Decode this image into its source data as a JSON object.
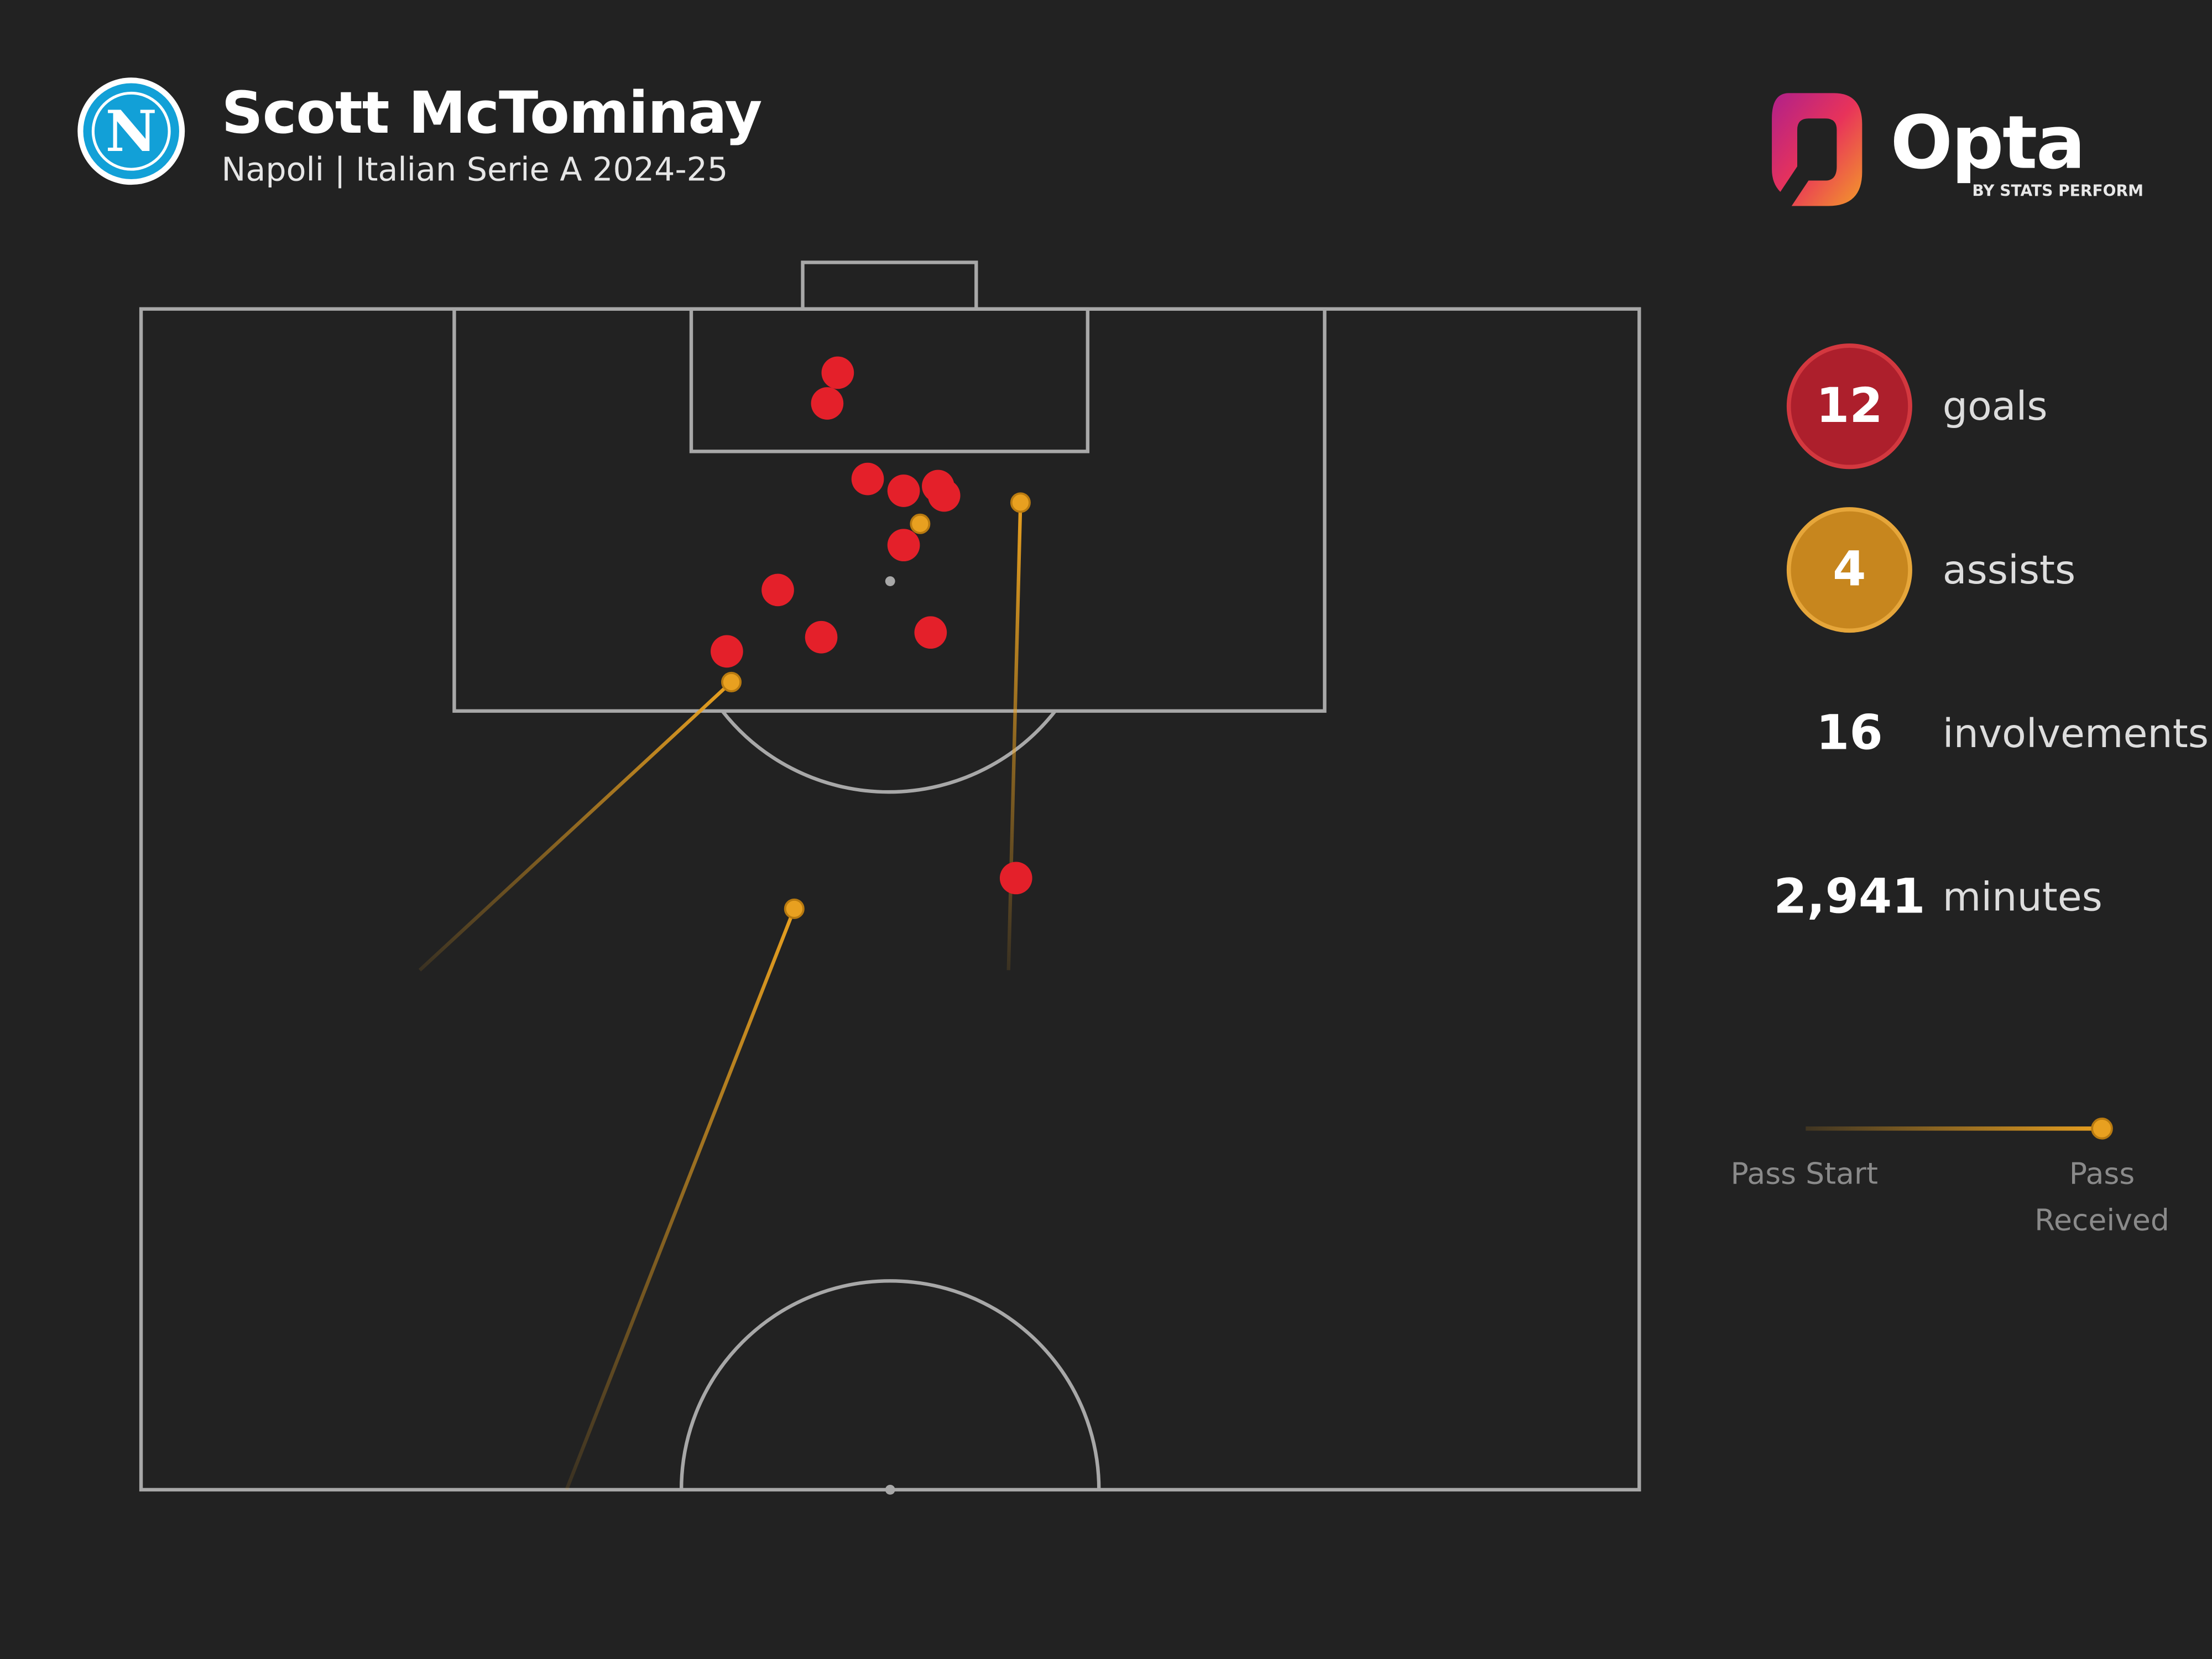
{
  "header": {
    "badge": "N",
    "title": "Scott McTominay",
    "subtitle": "Napoli | Italian Serie A 2024-25"
  },
  "logo": {
    "name": "Opta",
    "tagline": "BY STATS PERFORM"
  },
  "stats": [
    {
      "value": 12,
      "label": "goals"
    },
    {
      "value": 4,
      "label": "assists"
    },
    {
      "value": 16,
      "label": "involvements"
    },
    {
      "value": {
        "value": 2941,
        "label": "2,941"
      },
      "label": "minutes"
    }
  ],
  "legend": {
    "start": "Pass Start",
    "end": "Pass Received"
  },
  "chart_data": {
    "type": "pitch",
    "xlim": [
      0,
      100
    ],
    "ylim": [
      50,
      100
    ],
    "goals": {
      "color": "#e4202a",
      "x": [
        46.5,
        45.8,
        48.5,
        50.9,
        53.2,
        53.6,
        50.9,
        42.5,
        45.4,
        52.7,
        39.1,
        58.4
      ],
      "y": [
        97.3,
        96.0,
        92.8,
        92.3,
        92.5,
        92.1,
        90.0,
        88.1,
        86.1,
        86.3,
        85.5,
        75.9
      ]
    },
    "assists": {
      "color": "#e8a020",
      "start_x": [
        18.6,
        28.4,
        57.9,
        52.0
      ],
      "start_y": [
        72.0,
        50.0,
        72.0,
        90.9
      ],
      "end_x": [
        39.4,
        43.6,
        58.7,
        52.0
      ],
      "end_y": [
        84.2,
        74.6,
        91.8,
        90.9
      ]
    }
  }
}
